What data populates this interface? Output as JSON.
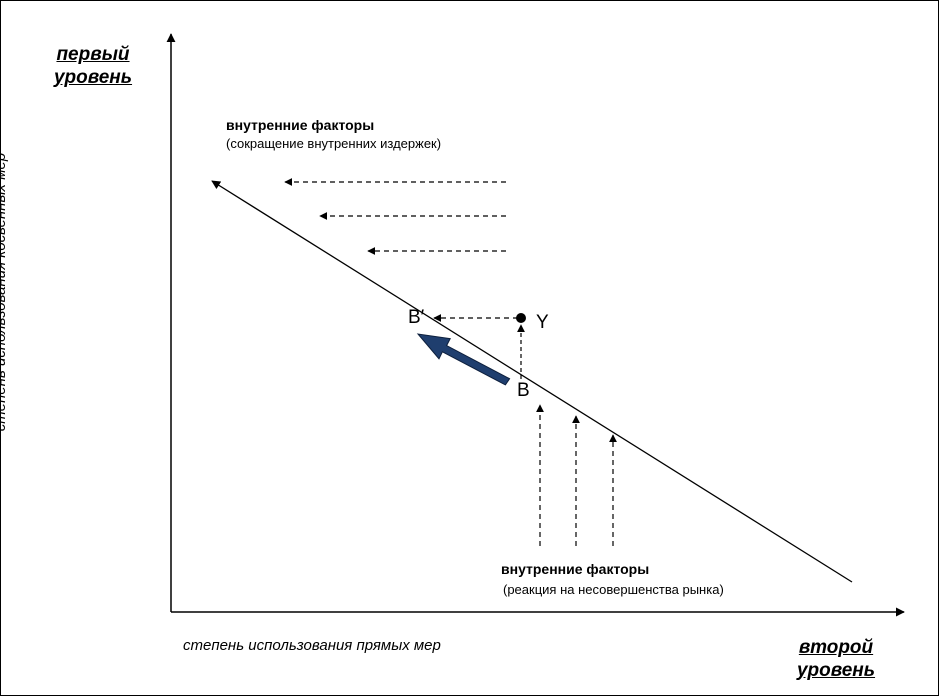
{
  "top_level": {
    "line1": "первый",
    "line2": "уровень"
  },
  "bottom_level": {
    "line1": "второй",
    "line2": "уровень"
  },
  "y_axis_label": "степень использования косвенных мер",
  "x_axis_label": "степень использования прямых мер",
  "upper_factors": {
    "title": "внутренние факторы",
    "subtitle": "(сокращение внутренних издержек)"
  },
  "lower_factors": {
    "title": "внутренние факторы",
    "subtitle": "(реакция на несовершенства рынка)"
  },
  "points": {
    "b_prime": "B′",
    "b": "B",
    "y": "Y"
  },
  "colors": {
    "move_arrow": "#1f3e6e",
    "stroke": "#000000"
  }
}
